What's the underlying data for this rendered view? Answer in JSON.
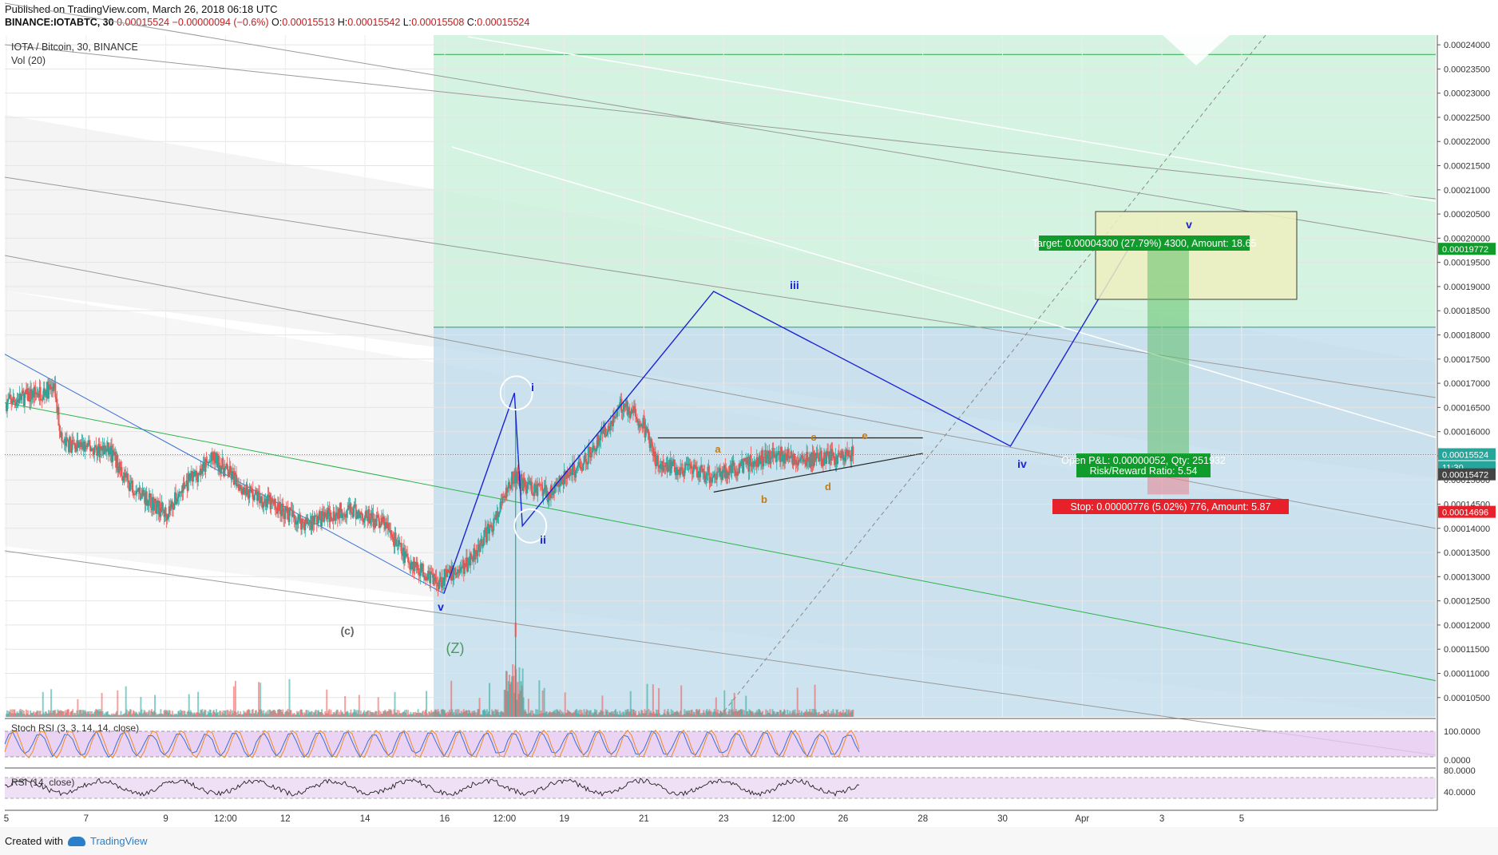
{
  "header": {
    "published": "Published on TradingView.com, March 26, 2018 06:18 UTC",
    "symbol": "BINANCE:IOTABTC, 30",
    "price": "0.00015524",
    "change": "−0.00000094 (−0.6%)",
    "o_label": "O:",
    "o_val": "0.00015513",
    "h_label": "H:",
    "h_val": "0.00015542",
    "l_label": "L:",
    "l_val": "0.00015508",
    "c_label": "C:",
    "c_val": "0.00015524"
  },
  "legend": {
    "title": "IOTA / Bitcoin, 30, BINANCE",
    "volume": "Vol (20)"
  },
  "footer": {
    "created": "Created with",
    "brand": "TradingView"
  },
  "colors": {
    "up": "#26a69a",
    "down": "#ef5350",
    "wave": "#1a23d6",
    "target_box": "#109c2a",
    "stop_box": "#e8202a",
    "pnl_box": "#109c2a"
  },
  "chart_data": {
    "type": "candlestick",
    "price_axis": {
      "min": 0.000101,
      "max": 0.000242,
      "ticks": [
        "0.00024000",
        "0.00023500",
        "0.00023000",
        "0.00022500",
        "0.00022000",
        "0.00021500",
        "0.00021000",
        "0.00020500",
        "0.00020000",
        "0.00019500",
        "0.00019000",
        "0.00018500",
        "0.00018000",
        "0.00017500",
        "0.00017000",
        "0.00016500",
        "0.00016000",
        "0.00015500",
        "0.00015000",
        "0.00014500",
        "0.00014000",
        "0.00013500",
        "0.00013000",
        "0.00012500",
        "0.00012000",
        "0.00011500",
        "0.00011000",
        "0.00010500"
      ]
    },
    "time_axis": [
      "5",
      "7",
      "9",
      "12:00",
      "12",
      "14",
      "16",
      "12:00",
      "19",
      "21",
      "23",
      "12:00",
      "26",
      "28",
      "30",
      "Apr",
      "3",
      "5"
    ],
    "price_tags": {
      "target_level": "0.00019772",
      "last_price": "0.00015524",
      "countdown": "11:30",
      "entry_level": "0.00015472",
      "stop_level": "0.00014696"
    },
    "position": {
      "target": "Target: 0.00004300 (27.79%) 4300, Amount: 18.65",
      "pnl": "Open P&L: 0.00000052, Qty: 251932",
      "rr": "Risk/Reward Ratio: 5.54",
      "stop": "Stop: 0.00000776 (5.02%) 776, Amount: 5.87"
    },
    "wave_labels": {
      "v_low": "v",
      "i": "i",
      "ii": "ii",
      "iii": "iii",
      "iv": "iv",
      "v_high": "v",
      "c": "(c)",
      "z": "(Z)",
      "a": "a",
      "b": "b",
      "c_small": "c",
      "d": "d",
      "e": "e"
    },
    "wave_path": [
      {
        "t": 15.98,
        "p": 0.0001265
      },
      {
        "t": 17.75,
        "p": 0.000168
      },
      {
        "t": 17.95,
        "p": 0.0001405
      },
      {
        "t": 22.75,
        "p": 0.000189
      },
      {
        "t": 30.2,
        "p": 0.000157
      },
      {
        "t": 33.25,
        "p": 0.000199
      }
    ],
    "stoch_rsi": {
      "label": "Stoch RSI (3, 3, 14, 14, close)",
      "ticks": [
        "100.0000",
        "0.0000"
      ]
    },
    "rsi": {
      "label": "RSI (14, close)",
      "ticks": [
        "80.0000",
        "40.0000"
      ]
    }
  }
}
